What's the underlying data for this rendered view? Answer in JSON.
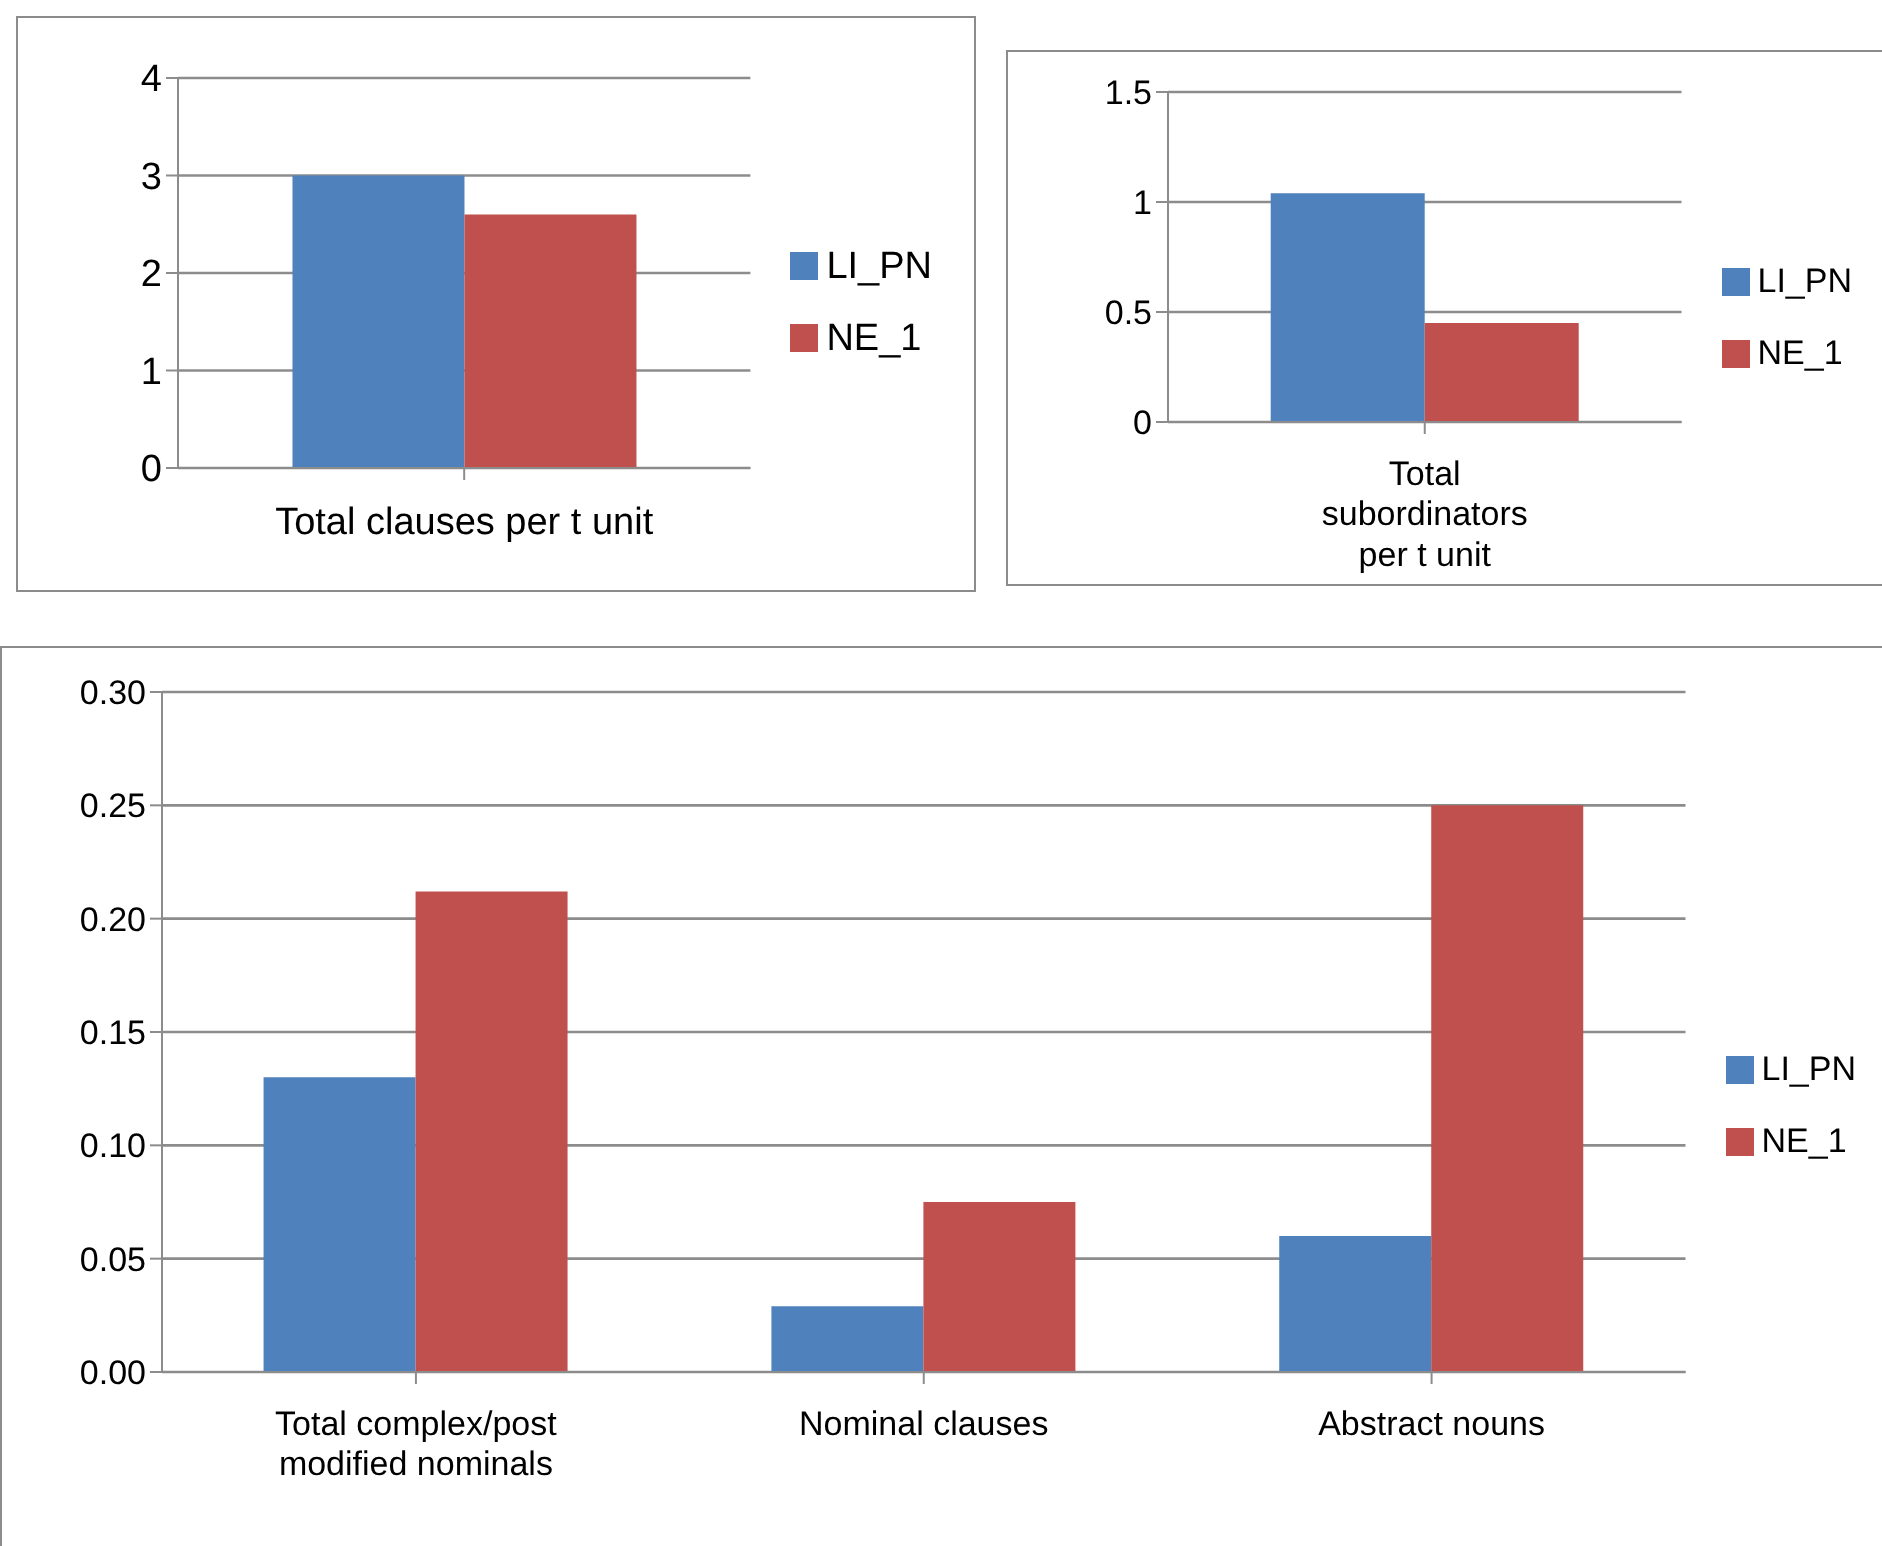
{
  "chart_data": [
    {
      "type": "bar",
      "categories": [
        "Total clauses per t unit"
      ],
      "series": [
        {
          "name": "LI_PN",
          "color": "#4f81bd",
          "values": [
            3.0
          ]
        },
        {
          "name": "NE_1",
          "color": "#c0504d",
          "values": [
            2.6
          ]
        }
      ],
      "ylim": [
        0,
        4
      ],
      "yticks": [
        0,
        1,
        2,
        3,
        4
      ],
      "grid": "y",
      "legend": "right"
    },
    {
      "type": "bar",
      "categories": [
        "Total subordinators per t unit"
      ],
      "series": [
        {
          "name": "LI_PN",
          "color": "#4f81bd",
          "values": [
            1.04
          ]
        },
        {
          "name": "NE_1",
          "color": "#c0504d",
          "values": [
            0.45
          ]
        }
      ],
      "ylim": [
        0,
        1.5
      ],
      "yticks": [
        0,
        0.5,
        1,
        1.5
      ],
      "grid": "y",
      "legend": "right"
    },
    {
      "type": "bar",
      "categories": [
        "Total complex/post modified nominals",
        "Nominal clauses",
        "Abstract nouns"
      ],
      "series": [
        {
          "name": "LI_PN",
          "color": "#4f81bd",
          "values": [
            0.13,
            0.029,
            0.06
          ]
        },
        {
          "name": "NE_1",
          "color": "#c0504d",
          "values": [
            0.212,
            0.075,
            0.25
          ]
        }
      ],
      "ylim": [
        0,
        0.3
      ],
      "yticks": [
        {
          "value": 0,
          "label": "0.00"
        },
        {
          "value": 0.05,
          "label": "0.05"
        },
        {
          "value": 0.1,
          "label": "0.10"
        },
        {
          "value": 0.15,
          "label": "0.15"
        },
        {
          "value": 0.2,
          "label": "0.20"
        },
        {
          "value": 0.25,
          "label": "0.25"
        },
        {
          "value": 0.3,
          "label": "0.30"
        }
      ],
      "grid": "y",
      "legend": "right"
    }
  ]
}
